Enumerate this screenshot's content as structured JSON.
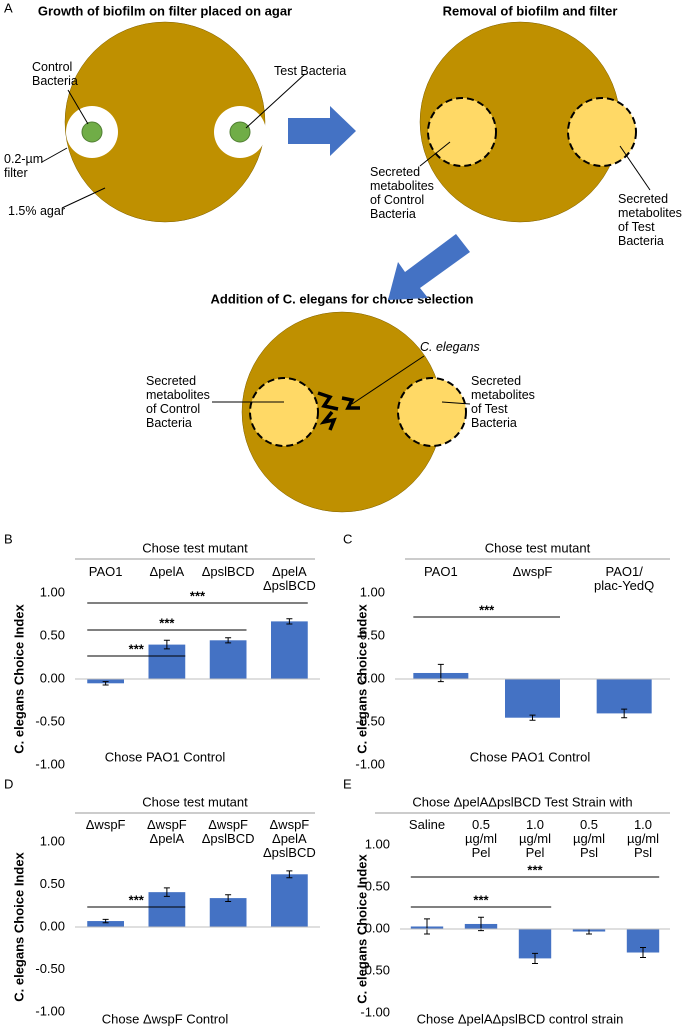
{
  "diagram": {
    "panel": "A",
    "plates": [
      {
        "title": "Growth of biofilm on filter placed  on agar",
        "labels": [
          "Control\nBacteria",
          "Test Bacteria",
          "0.2-µm\nfilter",
          "1.5% agar"
        ]
      },
      {
        "title": "Removal of biofilm and filter",
        "labels": [
          "Secreted\nmetabolites\nof Control\nBacteria",
          "Secreted\nmetabolites\nof Test\nBacteria"
        ]
      },
      {
        "title": "Addition of C. elegans for choice selection",
        "labels": [
          "C. elegans",
          "Secreted\nmetabolites\nof Control\nBacteria",
          "Secreted\nmetabolites\nof Test\nBacteria"
        ]
      }
    ]
  },
  "chart_data": [
    {
      "type": "bar",
      "panel": "B",
      "header": "Chose test mutant",
      "ylabel": "C. elegans Choice Index",
      "xlabel": "Chose PAO1 Control",
      "categories": [
        "PAO1",
        "ΔpelA",
        "ΔpslBCD",
        "ΔpelA\nΔpslBCD"
      ],
      "values": [
        -0.05,
        0.4,
        0.45,
        0.67
      ],
      "errors": [
        0.02,
        0.05,
        0.03,
        0.03
      ],
      "color": "#4472c4",
      "ylim": [
        -1,
        1
      ],
      "yticks": [
        {
          "value": -1,
          "label": "-1.00"
        },
        {
          "value": -0.5,
          "label": "-0.50"
        },
        {
          "value": 0,
          "label": "0.00"
        },
        {
          "value": 0.5,
          "label": "0.50"
        },
        {
          "value": 1,
          "label": "1.00"
        }
      ],
      "significance": [
        {
          "from": 0,
          "to": 1,
          "label": "***"
        },
        {
          "from": 0,
          "to": 2,
          "label": "***"
        },
        {
          "from": 0,
          "to": 3,
          "label": "***"
        }
      ]
    },
    {
      "type": "bar",
      "panel": "C",
      "header": "Chose test mutant",
      "ylabel": "C. elegans Choice Index",
      "xlabel": "Chose PAO1 Control",
      "categories": [
        "PAO1",
        "ΔwspF",
        "PAO1/\nplac-YedQ"
      ],
      "values": [
        0.07,
        -0.45,
        -0.4
      ],
      "errors": [
        0.1,
        0.03,
        0.05
      ],
      "color": "#4472c4",
      "ylim": [
        -1,
        1
      ],
      "yticks": [
        {
          "value": -1,
          "label": "-1.00"
        },
        {
          "value": -0.5,
          "label": "-0.50"
        },
        {
          "value": 0,
          "label": "0.00"
        },
        {
          "value": 0.5,
          "label": "0.50"
        },
        {
          "value": 1,
          "label": "1.00"
        }
      ],
      "significance": [
        {
          "from": 0,
          "to": 1,
          "label": "***"
        }
      ]
    },
    {
      "type": "bar",
      "panel": "D",
      "header": "Chose test mutant",
      "ylabel": "C. elegans Choice Index",
      "xlabel": "Chose ΔwspF Control",
      "categories": [
        "ΔwspF",
        "ΔwspF\nΔpelA",
        "ΔwspF\nΔpslBCD",
        "ΔwspF\nΔpelA\nΔpslBCD"
      ],
      "values": [
        0.07,
        0.41,
        0.34,
        0.62
      ],
      "errors": [
        0.02,
        0.05,
        0.04,
        0.04
      ],
      "color": "#4472c4",
      "ylim": [
        -1,
        1
      ],
      "yticks": [
        {
          "value": -1,
          "label": "-1.00"
        },
        {
          "value": -0.5,
          "label": "-0.50"
        },
        {
          "value": 0,
          "label": "0.00"
        },
        {
          "value": 0.5,
          "label": "0.50"
        },
        {
          "value": 1,
          "label": "1.00"
        }
      ],
      "significance": [
        {
          "from": 0,
          "to": 1,
          "label": "***"
        }
      ]
    },
    {
      "type": "bar",
      "panel": "E",
      "header": "Chose ΔpelAΔpslBCD Test Strain with",
      "ylabel": "C. elegans Choice Index",
      "xlabel": "Chose ΔpelAΔpslBCD control strain",
      "categories": [
        "Saline",
        "0.5\nµg/ml\nPel",
        "1.0\nµg/ml\nPel",
        "0.5\nµg/ml\nPsl",
        "1.0\nµg/ml\nPsl"
      ],
      "values": [
        0.03,
        0.06,
        -0.35,
        -0.03,
        -0.28
      ],
      "errors": [
        0.09,
        0.08,
        0.06,
        0.03,
        0.06
      ],
      "color": "#4472c4",
      "ylim": [
        -1,
        1
      ],
      "yticks": [
        {
          "value": -1,
          "label": "-1.00"
        },
        {
          "value": -0.5,
          "label": "-0.50"
        },
        {
          "value": 0,
          "label": "0.00"
        },
        {
          "value": 0.5,
          "label": "0.50"
        },
        {
          "value": 1,
          "label": "1.00"
        }
      ],
      "significance": [
        {
          "from": 0,
          "to": 2,
          "label": "***"
        },
        {
          "from": 0,
          "to": 4,
          "label": "***"
        }
      ]
    }
  ]
}
